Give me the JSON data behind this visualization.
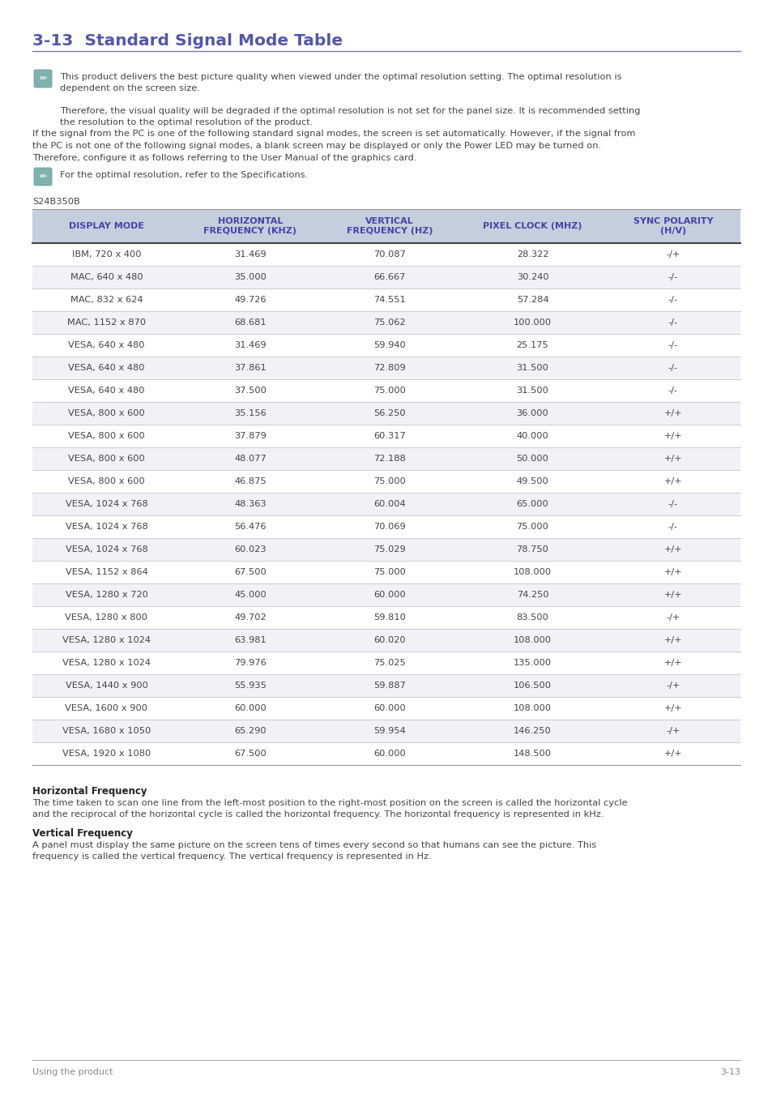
{
  "title": "3-13  Standard Signal Mode Table",
  "title_color": "#5555aa",
  "title_underline_color": "#7777bb",
  "note1_lines": [
    "This product delivers the best picture quality when viewed under the optimal resolution setting. The optimal resolution is",
    "dependent on the screen size.",
    "",
    "Therefore, the visual quality will be degraded if the optimal resolution is not set for the panel size. It is recommended setting",
    "the resolution to the optimal resolution of the product."
  ],
  "body_para_lines": [
    "If the signal from the PC is one of the following standard signal modes, the screen is set automatically. However, if the signal from",
    "the PC is not one of the following signal modes, a blank screen may be displayed or only the Power LED may be turned on.",
    "Therefore, configure it as follows referring to the User Manual of the graphics card."
  ],
  "note2": "For the optimal resolution, refer to the Specifications.",
  "model": "S24B350B",
  "table_header": [
    "DISPLAY MODE",
    "HORIZONTAL\nFREQUENCY (KHZ)",
    "VERTICAL\nFREQUENCY (HZ)",
    "PIXEL CLOCK (MHZ)",
    "SYNC POLARITY\n(H/V)"
  ],
  "header_bg": "#c5cedd",
  "header_text_color": "#4444aa",
  "table_rows": [
    [
      "IBM, 720 x 400",
      "31.469",
      "70.087",
      "28.322",
      "-/+"
    ],
    [
      "MAC, 640 x 480",
      "35.000",
      "66.667",
      "30.240",
      "-/-"
    ],
    [
      "MAC, 832 x 624",
      "49.726",
      "74.551",
      "57.284",
      "-/-"
    ],
    [
      "MAC, 1152 x 870",
      "68.681",
      "75.062",
      "100.000",
      "-/-"
    ],
    [
      "VESA, 640 x 480",
      "31.469",
      "59.940",
      "25.175",
      "-/-"
    ],
    [
      "VESA, 640 x 480",
      "37.861",
      "72.809",
      "31.500",
      "-/-"
    ],
    [
      "VESA, 640 x 480",
      "37.500",
      "75.000",
      "31.500",
      "-/-"
    ],
    [
      "VESA, 800 x 600",
      "35.156",
      "56.250",
      "36.000",
      "+/+"
    ],
    [
      "VESA, 800 x 600",
      "37.879",
      "60.317",
      "40.000",
      "+/+"
    ],
    [
      "VESA, 800 x 600",
      "48.077",
      "72.188",
      "50.000",
      "+/+"
    ],
    [
      "VESA, 800 x 600",
      "46.875",
      "75.000",
      "49.500",
      "+/+"
    ],
    [
      "VESA, 1024 x 768",
      "48.363",
      "60.004",
      "65.000",
      "-/-"
    ],
    [
      "VESA, 1024 x 768",
      "56.476",
      "70.069",
      "75.000",
      "-/-"
    ],
    [
      "VESA, 1024 x 768",
      "60.023",
      "75.029",
      "78.750",
      "+/+"
    ],
    [
      "VESA, 1152 x 864",
      "67.500",
      "75.000",
      "108.000",
      "+/+"
    ],
    [
      "VESA, 1280 x 720",
      "45.000",
      "60.000",
      "74.250",
      "+/+"
    ],
    [
      "VESA, 1280 x 800",
      "49.702",
      "59.810",
      "83.500",
      "-/+"
    ],
    [
      "VESA, 1280 x 1024",
      "63.981",
      "60.020",
      "108.000",
      "+/+"
    ],
    [
      "VESA, 1280 x 1024",
      "79.976",
      "75.025",
      "135.000",
      "+/+"
    ],
    [
      "VESA, 1440 x 900",
      "55.935",
      "59.887",
      "106.500",
      "-/+"
    ],
    [
      "VESA, 1600 x 900",
      "60.000",
      "60.000",
      "108.000",
      "+/+"
    ],
    [
      "VESA, 1680 x 1050",
      "65.290",
      "59.954",
      "146.250",
      "-/+"
    ],
    [
      "VESA, 1920 x 1080",
      "67.500",
      "60.000",
      "148.500",
      "+/+"
    ]
  ],
  "row_bg_odd": "#ffffff",
  "row_bg_even": "#f0f2f8",
  "footer_bold1": "Horizontal Frequency",
  "footer_text1_lines": [
    "The time taken to scan one line from the left-most position to the right-most position on the screen is called the horizontal cycle",
    "and the reciprocal of the horizontal cycle is called the horizontal frequency. The horizontal frequency is represented in kHz."
  ],
  "footer_bold2": "Vertical Frequency",
  "footer_text2_lines": [
    "A panel must display the same picture on the screen tens of times every second so that humans can see the picture. This",
    "frequency is called the vertical frequency. The vertical frequency is represented in Hz."
  ],
  "page_footer_left": "Using the product",
  "page_footer_right": "3-13",
  "icon_bg": "#80b0b0",
  "text_color": "#444444",
  "light_text": "#888888"
}
